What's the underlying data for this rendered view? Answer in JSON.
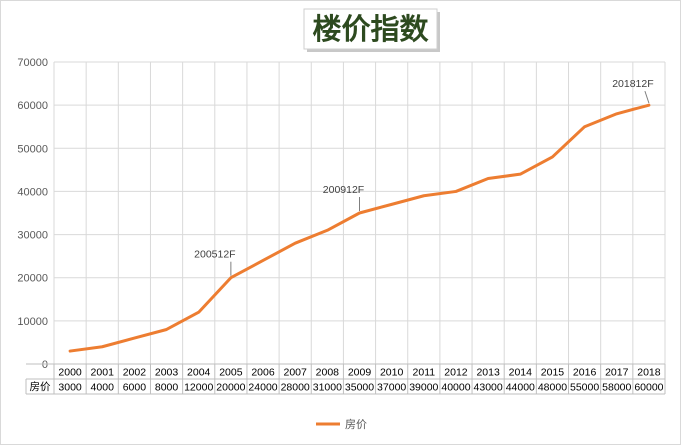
{
  "chart_data": {
    "type": "line",
    "title": "楼价指数",
    "categories": [
      "2000",
      "2001",
      "2002",
      "2003",
      "2004",
      "2005",
      "2006",
      "2007",
      "2008",
      "2009",
      "2010",
      "2011",
      "2012",
      "2013",
      "2014",
      "2015",
      "2016",
      "2017",
      "2018"
    ],
    "series": [
      {
        "name": "房价",
        "values": [
          3000,
          4000,
          6000,
          8000,
          12000,
          20000,
          24000,
          28000,
          31000,
          35000,
          37000,
          39000,
          40000,
          43000,
          44000,
          48000,
          55000,
          58000,
          60000
        ],
        "color": "#ed7d31"
      }
    ],
    "ylim": [
      0,
      70000
    ],
    "yticks": [
      0,
      10000,
      20000,
      30000,
      40000,
      50000,
      60000,
      70000
    ],
    "grid": true,
    "legend": "bottom",
    "data_table": true,
    "annotations": [
      {
        "text": "200512F",
        "category": "2005"
      },
      {
        "text": "200912F",
        "category": "2009"
      },
      {
        "text": "201812F",
        "category": "2018"
      }
    ]
  }
}
